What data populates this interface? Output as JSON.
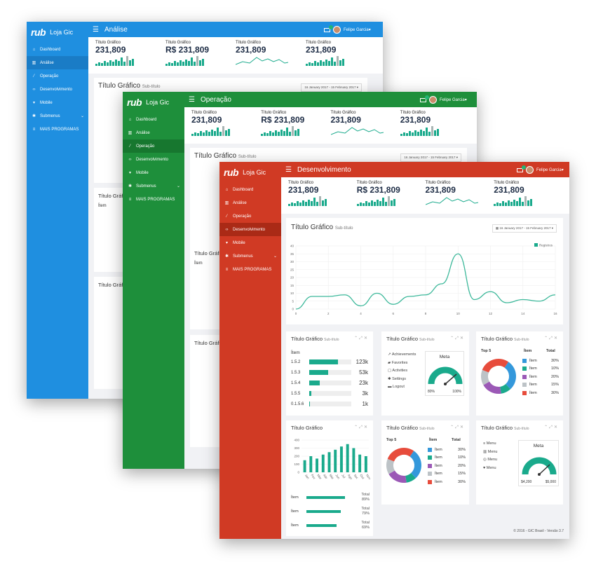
{
  "brand": {
    "logo": "rub",
    "app_name": "Loja Gic"
  },
  "user": {
    "name": "Felipe Garcia"
  },
  "colors": {
    "blue": "#1f8fe0",
    "blue_dark": "#1a7cc6",
    "green": "#1e8f3b",
    "green_dark": "#17772f",
    "red": "#d03a24",
    "red_dark": "#aa2a16",
    "teal": "#1aaa8c"
  },
  "menu": {
    "items": [
      "Dashboard",
      "Análise",
      "Operação",
      "Desenvolvimento",
      "Mobile",
      "Submenus",
      "MAIS PROGRAMAS"
    ]
  },
  "windows": {
    "analise": {
      "title": "Análise"
    },
    "operacao": {
      "title": "Operação"
    },
    "desenvolvimento": {
      "title": "Desenvolvimento"
    }
  },
  "stats": [
    {
      "label": "Título Gráfico",
      "value": "231,809"
    },
    {
      "label": "Título Gráfico",
      "value": "R$ 231,809"
    },
    {
      "label": "Título Gráfico",
      "value": "231,809"
    },
    {
      "label": "Título Gráfico",
      "value": "231,809"
    }
  ],
  "main_chart": {
    "title": "Título Gráfico",
    "subtitle": "Sub-título",
    "date_range": "16 January 2017 - 15 February 2017",
    "legend": "Registros"
  },
  "chart_data": {
    "type": "line",
    "x": [
      0,
      1,
      2,
      3,
      4,
      5,
      6,
      7,
      8,
      9,
      10,
      11,
      12,
      13,
      14,
      15,
      16
    ],
    "series": [
      {
        "name": "Registros",
        "values": [
          0,
          8,
          8,
          9,
          2,
          10,
          3,
          8,
          9,
          16,
          35,
          6,
          11,
          4,
          6,
          5,
          9
        ]
      }
    ],
    "xticks": [
      "0",
      "2",
      "4",
      "6",
      "8",
      "10",
      "12",
      "14",
      "16"
    ],
    "yticks": [
      "0",
      "5",
      "10",
      "15",
      "20",
      "25",
      "30",
      "35",
      "40"
    ],
    "ylim": [
      0,
      40
    ],
    "xlim": [
      0,
      16
    ]
  },
  "panel_table": {
    "title": "Título Gráfico",
    "subtitle": "Sub-título",
    "header": "Ítem",
    "rows": [
      {
        "label": "1.5.2",
        "value": "123k",
        "fill": 0.68
      },
      {
        "label": "1.5.3",
        "value": "53k",
        "fill": 0.45
      },
      {
        "label": "1.5.4",
        "value": "23k",
        "fill": 0.25
      },
      {
        "label": "1.5.5",
        "value": "3k",
        "fill": 0.05
      },
      {
        "label": "0.1.5.6",
        "value": "1k",
        "fill": 0.02
      }
    ]
  },
  "panel_meta": {
    "title": "Título Gráfico",
    "subtitle": "Sub-título",
    "links": [
      "Achievements",
      "Favorites",
      "Activities",
      "Settings",
      "Logout"
    ],
    "gauge_title": "Meta",
    "gauge_min": "80%",
    "gauge_max": "100%"
  },
  "panel_top5": {
    "title": "Título Gráfico",
    "subtitle": "Sub-título",
    "heading": "Top 5",
    "col_item": "Ítem",
    "col_total": "Total",
    "rows": [
      {
        "item": "Ítem",
        "total": "30%",
        "color": "#3498db"
      },
      {
        "item": "Ítem",
        "total": "10%",
        "color": "#1aaa8c"
      },
      {
        "item": "Ítem",
        "total": "20%",
        "color": "#9b59b6"
      },
      {
        "item": "Ítem",
        "total": "15%",
        "color": "#bdc3c7"
      },
      {
        "item": "Ítem",
        "total": "30%",
        "color": "#e74c3c"
      }
    ]
  },
  "panel_bars": {
    "title": "Título Gráfico",
    "values": [
      150,
      200,
      170,
      220,
      250,
      280,
      320,
      350,
      300,
      220,
      200
    ],
    "months": [
      "Jan",
      "Fev",
      "Mar",
      "Abr",
      "Mai",
      "Jun",
      "Jul",
      "Ago",
      "Set",
      "Out",
      "Nov"
    ],
    "yticks": [
      "0",
      "100",
      "200",
      "300",
      "400"
    ],
    "rows": [
      {
        "label": "Ítem",
        "total_label": "Total",
        "total": "89%",
        "fill": 0.89
      },
      {
        "label": "Ítem",
        "total_label": "Total",
        "total": "79%",
        "fill": 0.79
      },
      {
        "label": "Ítem",
        "total_label": "Total",
        "total": "69%",
        "fill": 0.69
      }
    ]
  },
  "panel_top5b": {
    "title": "Título Gráfico",
    "subtitle": "Sub-título",
    "heading": "Top 5",
    "col_item": "Ítem",
    "col_total": "Total",
    "rows": [
      {
        "item": "Ítem",
        "total": "30%",
        "color": "#3498db"
      },
      {
        "item": "Ítem",
        "total": "10%",
        "color": "#1aaa8c"
      },
      {
        "item": "Ítem",
        "total": "20%",
        "color": "#9b59b6"
      },
      {
        "item": "Ítem",
        "total": "15%",
        "color": "#bdc3c7"
      },
      {
        "item": "Ítem",
        "total": "30%",
        "color": "#e74c3c"
      }
    ]
  },
  "panel_menu": {
    "title": "Título Gráfico",
    "subtitle": "Sub-título",
    "links": [
      "Menu",
      "Menu",
      "Menu",
      "Menu"
    ],
    "gauge_title": "Meta",
    "gauge_min": "$4,200",
    "gauge_max": "$5,000"
  },
  "footer": "© 2016 - GIC Brasil - Versão 3.7"
}
